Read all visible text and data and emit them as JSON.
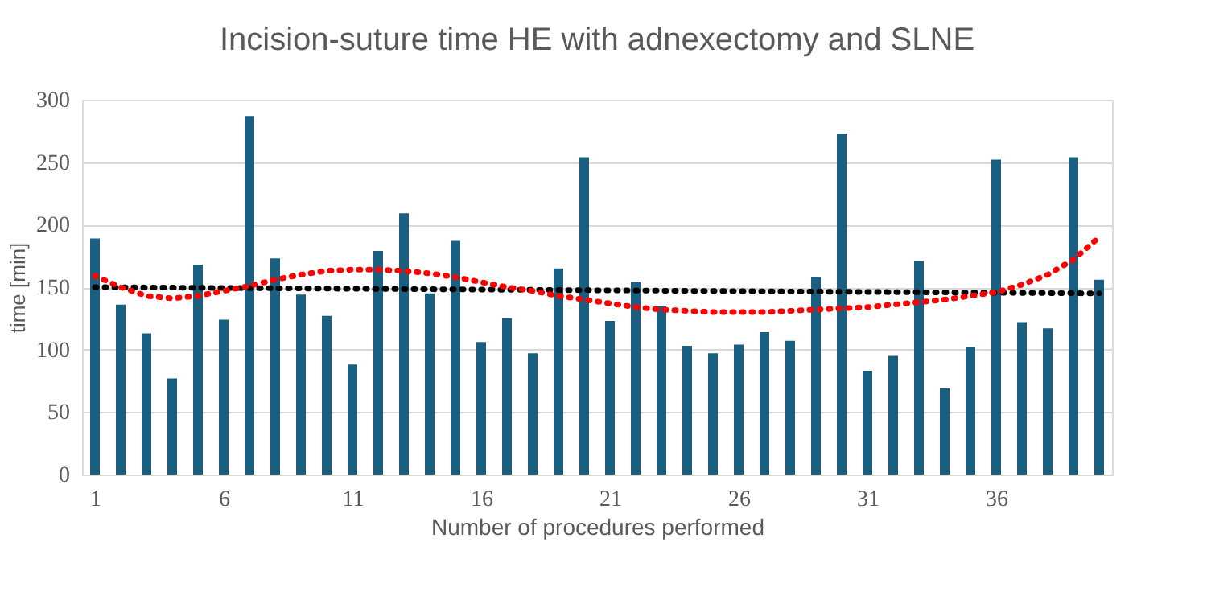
{
  "chart_data": {
    "type": "bar",
    "title": "Incision-suture time HE with adnexectomy and SLNE",
    "xlabel": "Number of procedures performed",
    "ylabel": "time [min]",
    "x": [
      1,
      2,
      3,
      4,
      5,
      6,
      7,
      8,
      9,
      10,
      11,
      12,
      13,
      14,
      15,
      16,
      17,
      18,
      19,
      20,
      21,
      22,
      23,
      24,
      25,
      26,
      27,
      28,
      29,
      30,
      31,
      32,
      33,
      34,
      35,
      36,
      37,
      38,
      39,
      40
    ],
    "xlim": [
      0.5,
      40.5
    ],
    "xticks": [
      1,
      6,
      11,
      16,
      21,
      26,
      31,
      36
    ],
    "ylim": [
      0,
      300
    ],
    "yticks": [
      0,
      50,
      100,
      150,
      200,
      250,
      300
    ],
    "grid": "y",
    "series": [
      {
        "color": "#1a5f80",
        "values": [
          189,
          136,
          113,
          77,
          168,
          124,
          287,
          173,
          144,
          127,
          88,
          179,
          209,
          145,
          187,
          106,
          125,
          97,
          165,
          254,
          123,
          154,
          135,
          103,
          97,
          104,
          114,
          107,
          158,
          273,
          83,
          95,
          171,
          69,
          102,
          252,
          122,
          117,
          254,
          156
        ]
      },
      {
        "type": "line",
        "color": "#000000",
        "line_style": "dotted",
        "x": [
          1,
          40
        ],
        "values": [
          150,
          145
        ]
      },
      {
        "type": "line",
        "color": "#ff0000",
        "line_style": "dotted",
        "x": [
          1,
          2,
          3,
          4,
          5,
          6,
          7,
          8,
          9,
          10,
          11,
          12,
          13,
          14,
          15,
          16,
          17,
          18,
          19,
          20,
          21,
          22,
          23,
          24,
          25,
          26,
          27,
          28,
          29,
          30,
          31,
          32,
          33,
          34,
          35,
          36,
          37,
          38,
          39,
          40
        ],
        "values": [
          159,
          150,
          143,
          141,
          143,
          147,
          151,
          156,
          160,
          163,
          164,
          164,
          163,
          161,
          158,
          154,
          150,
          147,
          143,
          140,
          137,
          134,
          132,
          131,
          130,
          130,
          130,
          131,
          132,
          133,
          134,
          136,
          138,
          140,
          143,
          146,
          152,
          160,
          172,
          190
        ]
      }
    ]
  }
}
